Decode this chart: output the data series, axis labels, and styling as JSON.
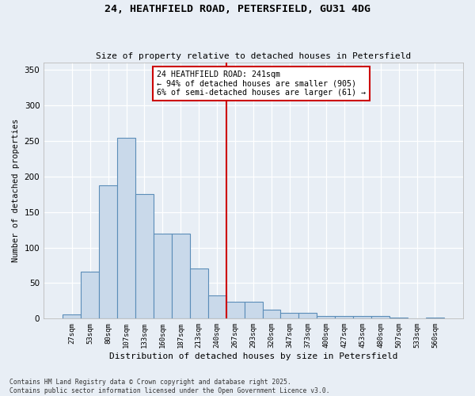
{
  "title_line1": "24, HEATHFIELD ROAD, PETERSFIELD, GU31 4DG",
  "title_line2": "Size of property relative to detached houses in Petersfield",
  "xlabel": "Distribution of detached houses by size in Petersfield",
  "ylabel": "Number of detached properties",
  "categories": [
    "27sqm",
    "53sqm",
    "80sqm",
    "107sqm",
    "133sqm",
    "160sqm",
    "187sqm",
    "213sqm",
    "240sqm",
    "267sqm",
    "293sqm",
    "320sqm",
    "347sqm",
    "373sqm",
    "400sqm",
    "427sqm",
    "453sqm",
    "480sqm",
    "507sqm",
    "533sqm",
    "560sqm"
  ],
  "values": [
    6,
    66,
    187,
    254,
    175,
    119,
    119,
    70,
    33,
    24,
    24,
    13,
    8,
    8,
    4,
    4,
    4,
    4,
    2,
    0,
    2
  ],
  "bar_color": "#c9d9ea",
  "bar_edge_color": "#5b8db8",
  "vline_x": 8.5,
  "vline_color": "#cc0000",
  "annotation_text": "24 HEATHFIELD ROAD: 241sqm\n← 94% of detached houses are smaller (905)\n6% of semi-detached houses are larger (61) →",
  "annotation_box_color": "#ffffff",
  "annotation_box_edge": "#cc0000",
  "bg_color": "#e8eef5",
  "plot_bg_color": "#e8eef5",
  "footer_line1": "Contains HM Land Registry data © Crown copyright and database right 2025.",
  "footer_line2": "Contains public sector information licensed under the Open Government Licence v3.0.",
  "ylim": [
    0,
    360
  ],
  "yticks": [
    0,
    50,
    100,
    150,
    200,
    250,
    300,
    350
  ]
}
